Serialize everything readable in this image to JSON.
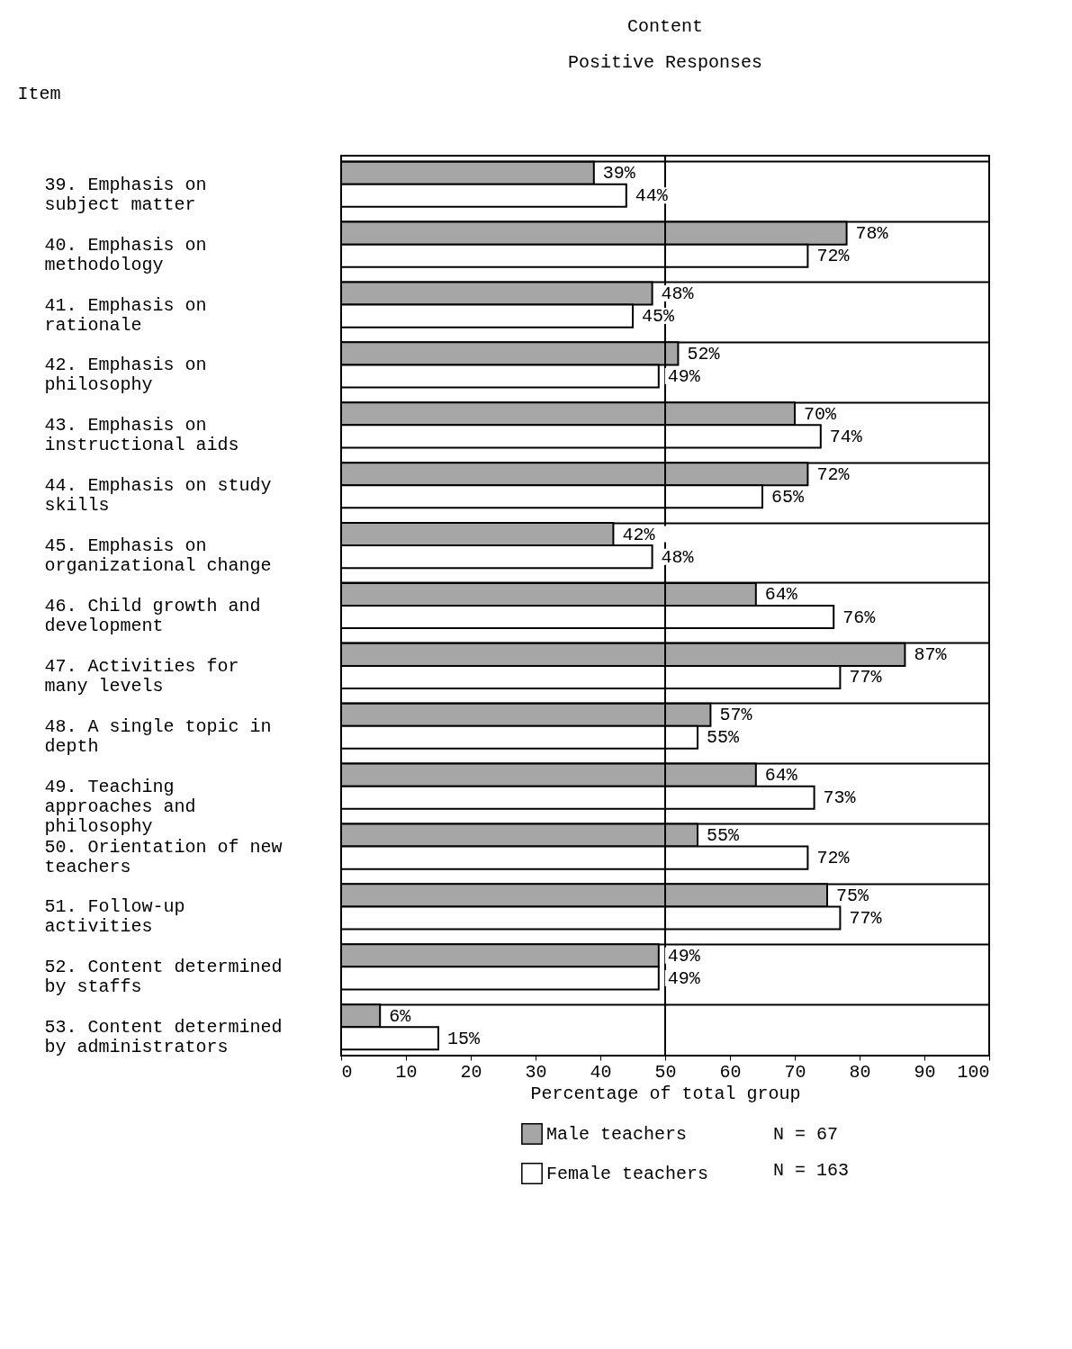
{
  "chart_data": {
    "type": "bar",
    "orientation": "horizontal",
    "title": "Content",
    "subtitle": "Positive Responses",
    "ylabel": "Item",
    "xlabel": "Percentage of total group",
    "categories": [
      "39. Emphasis on subject matter",
      "40. Emphasis on methodology",
      "41. Emphasis on rationale",
      "42. Emphasis on philosophy",
      "43. Emphasis on instructional aids",
      "44. Emphasis on study skills",
      "45. Emphasis on organizational change",
      "46. Child growth and development",
      "47. Activities for many levels",
      "48. A single topic in depth",
      "49. Teaching approaches and philosophy",
      "50. Orientation of new teachers",
      "51. Follow-up activities",
      "52. Content determined by staffs",
      "53. Content determined by administrators"
    ],
    "series": [
      {
        "name": "Male teachers",
        "color": "#a6a6a6",
        "values": [
          39,
          78,
          48,
          52,
          70,
          72,
          42,
          64,
          87,
          57,
          64,
          55,
          75,
          49,
          6
        ],
        "value_labels": [
          "39%",
          "78%",
          "48%",
          "52%",
          "70%",
          "72%",
          "42%",
          "64%",
          "87%",
          "57%",
          "64%",
          "55%",
          "75%",
          "49%",
          "6%"
        ]
      },
      {
        "name": "Female teachers",
        "color": "#ffffff",
        "values": [
          44,
          72,
          45,
          49,
          74,
          65,
          48,
          76,
          77,
          55,
          73,
          72,
          77,
          49,
          15
        ],
        "value_labels": [
          "44%",
          "72%",
          "45%",
          "49%",
          "74%",
          "65%",
          "48%",
          "76%",
          "77%",
          "55%",
          "73%",
          "72%",
          "77%",
          "49%",
          "15%"
        ]
      }
    ],
    "xlim": [
      0,
      100
    ],
    "xticks": [
      0,
      10,
      20,
      30,
      40,
      50,
      60,
      70,
      80,
      90,
      100
    ],
    "ref_lines": [
      {
        "axis": "x",
        "value": 50,
        "color": "#000000"
      }
    ],
    "grid": false,
    "legend": "bottom",
    "annotations": [
      "N = 67",
      "N = 163"
    ]
  }
}
